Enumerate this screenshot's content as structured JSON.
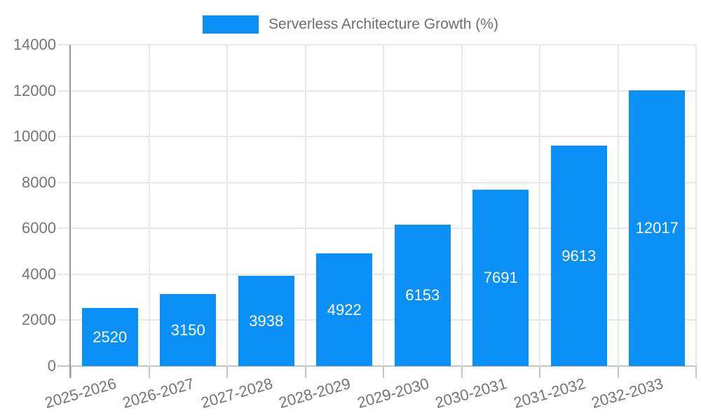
{
  "legend": {
    "label": "Serverless Architecture Growth (%)"
  },
  "chart_data": {
    "type": "bar",
    "title": "Serverless Architecture Growth (%)",
    "categories": [
      "2025-2026",
      "2026-2027",
      "2027-2028",
      "2028-2029",
      "2029-2030",
      "2030-2031",
      "2031-2032",
      "2032-2033"
    ],
    "values": [
      2520,
      3150,
      3938,
      4922,
      6153,
      7691,
      9613,
      12017
    ],
    "xlabel": "",
    "ylabel": "",
    "ylim": [
      0,
      14000
    ],
    "ytick_step": 2000,
    "ytick_labels": [
      "0",
      "2000",
      "4000",
      "6000",
      "8000",
      "10000",
      "12000",
      "14000"
    ],
    "value_labels": [
      "2520",
      "3150",
      "3938",
      "4922",
      "6153",
      "7691",
      "9613",
      "12017"
    ],
    "legend_position": "top",
    "grid": "on",
    "bar_color": "#0b90f8",
    "value_label_color": "#ffffff",
    "axis_label_color": "#757575",
    "legend_text_color": "#6d6d6d",
    "gridline_color": "#e7e7e7",
    "axis_line_color": "#9b9b9b",
    "background_color": "#ffffff"
  }
}
